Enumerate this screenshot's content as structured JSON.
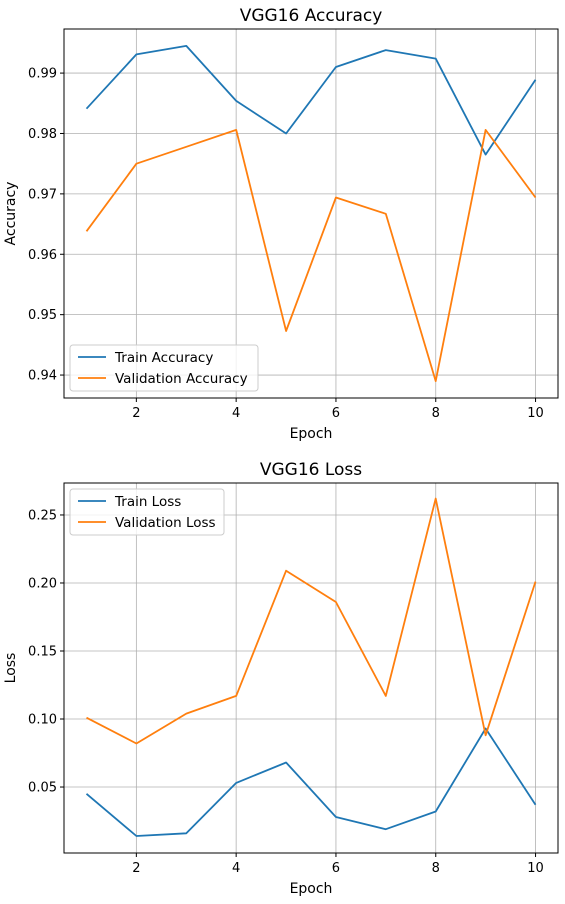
{
  "chart_data": [
    {
      "type": "line",
      "title": "VGG16 Accuracy",
      "xlabel": "Epoch",
      "ylabel": "Accuracy",
      "x": [
        1,
        2,
        3,
        4,
        5,
        6,
        7,
        8,
        9,
        10
      ],
      "xlim": [
        0.55,
        10.45
      ],
      "ylim": [
        0.9362,
        0.9973
      ],
      "xticks": [
        2,
        4,
        6,
        8,
        10
      ],
      "xtick_labels": [
        "2",
        "4",
        "6",
        "8",
        "10"
      ],
      "yticks": [
        0.94,
        0.95,
        0.96,
        0.97,
        0.98,
        0.99
      ],
      "ytick_labels": [
        "0.94",
        "0.95",
        "0.96",
        "0.97",
        "0.98",
        "0.99"
      ],
      "grid": true,
      "legend_position": "lower-left",
      "series": [
        {
          "name": "Train Accuracy",
          "color": "#1f77b4",
          "values": [
            0.9841,
            0.9931,
            0.9945,
            0.9854,
            0.98,
            0.991,
            0.9938,
            0.9924,
            0.9765,
            0.9889
          ]
        },
        {
          "name": "Validation Accuracy",
          "color": "#ff7f0e",
          "values": [
            0.9638,
            0.975,
            0.9778,
            0.9806,
            0.9473,
            0.9694,
            0.9667,
            0.939,
            0.9806,
            0.9694
          ]
        }
      ]
    },
    {
      "type": "line",
      "title": "VGG16 Loss",
      "xlabel": "Epoch",
      "ylabel": "Loss",
      "x": [
        1,
        2,
        3,
        4,
        5,
        6,
        7,
        8,
        9,
        10
      ],
      "xlim": [
        0.55,
        10.45
      ],
      "ylim": [
        0.0015,
        0.2735
      ],
      "xticks": [
        2,
        4,
        6,
        8,
        10
      ],
      "xtick_labels": [
        "2",
        "4",
        "6",
        "8",
        "10"
      ],
      "yticks": [
        0.05,
        0.1,
        0.15,
        0.2,
        0.25
      ],
      "ytick_labels": [
        "0.05",
        "0.10",
        "0.15",
        "0.20",
        "0.25"
      ],
      "grid": true,
      "legend_position": "upper-left",
      "series": [
        {
          "name": "Train Loss",
          "color": "#1f77b4",
          "values": [
            0.045,
            0.014,
            0.016,
            0.053,
            0.068,
            0.028,
            0.019,
            0.032,
            0.093,
            0.037
          ]
        },
        {
          "name": "Validation Loss",
          "color": "#ff7f0e",
          "values": [
            0.101,
            0.082,
            0.104,
            0.117,
            0.209,
            0.186,
            0.117,
            0.262,
            0.088,
            0.201
          ]
        }
      ]
    }
  ]
}
